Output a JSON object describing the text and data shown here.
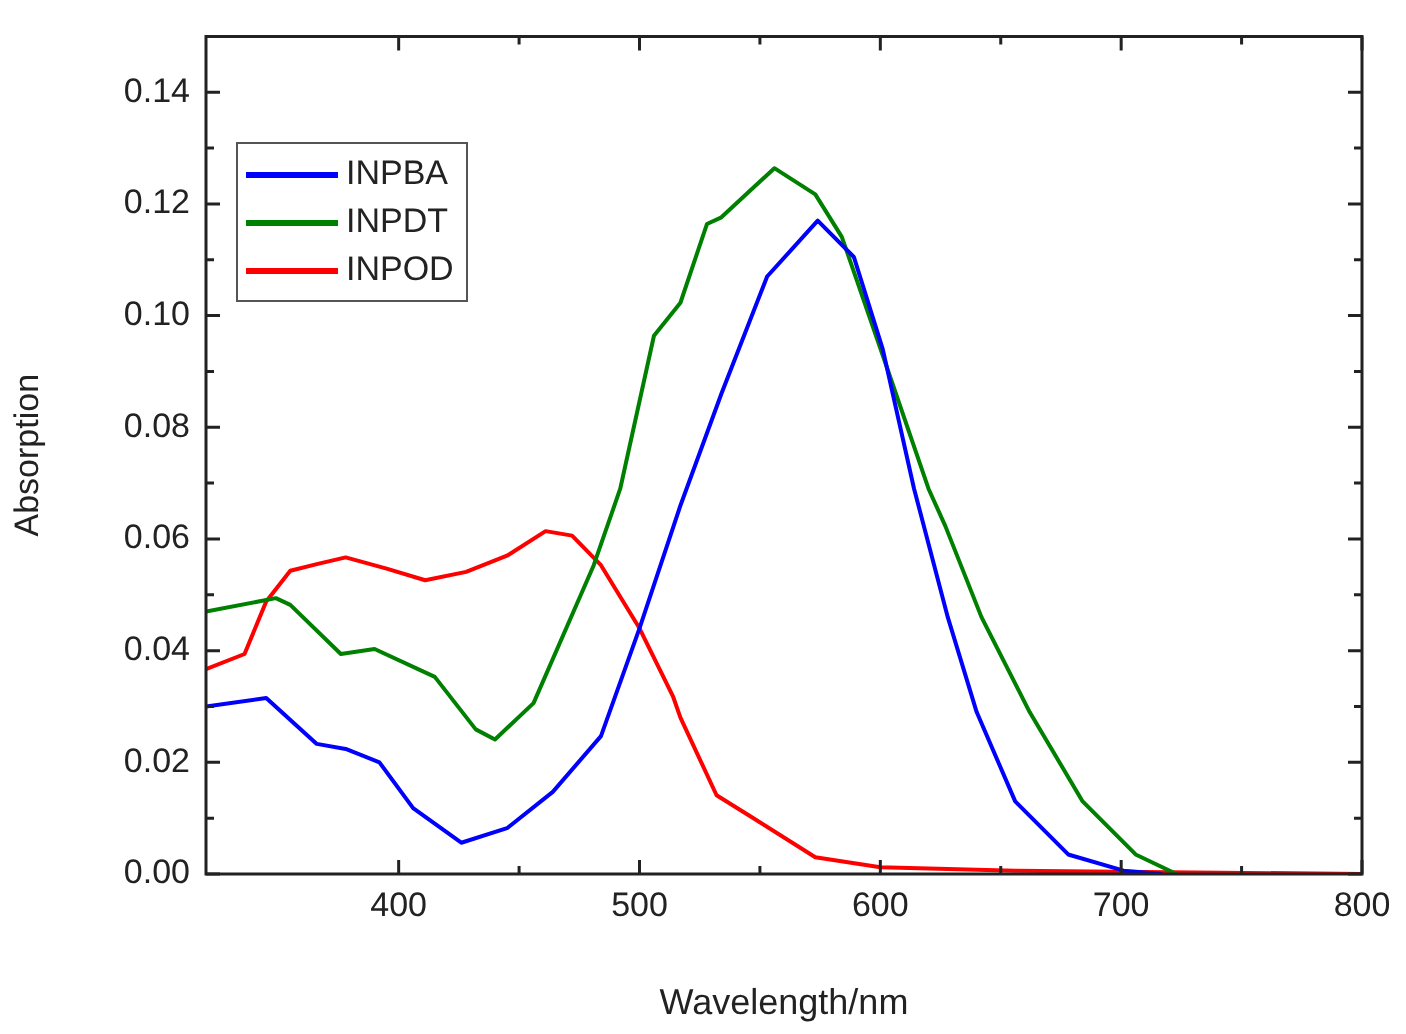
{
  "chart_data": {
    "type": "line",
    "xlabel": "Wavelength/nm",
    "ylabel": "Absorption",
    "xlim": [
      320,
      800
    ],
    "ylim": [
      0,
      0.15
    ],
    "xticks": [
      400,
      {
        "value": 450,
        "label": null
      },
      500,
      {
        "value": 550,
        "label": null
      },
      600,
      {
        "value": 650,
        "label": null
      },
      700,
      {
        "value": 750,
        "label": null
      },
      800
    ],
    "yticks": [
      {
        "value": 0,
        "label": "0.00"
      },
      {
        "value": 0.01,
        "label": null
      },
      {
        "value": 0.02,
        "label": "0.02"
      },
      {
        "value": 0.03,
        "label": null
      },
      {
        "value": 0.04,
        "label": "0.04"
      },
      {
        "value": 0.05,
        "label": null
      },
      {
        "value": 0.06,
        "label": "0.06"
      },
      {
        "value": 0.07,
        "label": null
      },
      {
        "value": 0.08,
        "label": "0.08"
      },
      {
        "value": 0.09,
        "label": null
      },
      {
        "value": 0.1,
        "label": "0.10"
      },
      {
        "value": 0.11,
        "label": null
      },
      {
        "value": 0.12,
        "label": "0.12"
      },
      {
        "value": 0.13,
        "label": null
      },
      {
        "value": 0.14,
        "label": "0.14"
      }
    ],
    "legend": "top left",
    "grid": false,
    "marker": "none",
    "line_style": "solid",
    "series": [
      {
        "name": "INPBA",
        "color": "#0000ff",
        "x": [
          320,
          345,
          366,
          378,
          392,
          406,
          426,
          445,
          464,
          484,
          500,
          517,
          534,
          553,
          574,
          589,
          601,
          614,
          628,
          640,
          656,
          678,
          701,
          717
        ],
        "values": [
          0.03,
          0.0315,
          0.0233,
          0.0224,
          0.02,
          0.0118,
          0.0056,
          0.0082,
          0.0147,
          0.0247,
          0.044,
          0.066,
          0.086,
          0.107,
          0.117,
          0.1105,
          0.094,
          0.069,
          0.046,
          0.029,
          0.013,
          0.0035,
          0.0006,
          0
        ]
      },
      {
        "name": "INPDT",
        "color": "#008000",
        "x": [
          320,
          349,
          355,
          376,
          390,
          415,
          432,
          440,
          456,
          481,
          492,
          506,
          517,
          528,
          534,
          556,
          573,
          584,
          601,
          620,
          627,
          642,
          662,
          684,
          706,
          723
        ],
        "values": [
          0.047,
          0.0494,
          0.0482,
          0.0394,
          0.0403,
          0.0353,
          0.0259,
          0.0241,
          0.0306,
          0.0553,
          0.069,
          0.0964,
          0.1023,
          0.1164,
          0.1176,
          0.1264,
          0.1217,
          0.1141,
          0.0929,
          0.069,
          0.0623,
          0.046,
          0.029,
          0.013,
          0.0035,
          0
        ]
      },
      {
        "name": "INPOD",
        "color": "#ff0000",
        "x": [
          320,
          336,
          345,
          355,
          366,
          378,
          395,
          411,
          428,
          445,
          461,
          472,
          484,
          500,
          514,
          517,
          532,
          545,
          573,
          600,
          656,
          800
        ],
        "values": [
          0.0367,
          0.0394,
          0.0488,
          0.0543,
          0.0555,
          0.0567,
          0.0547,
          0.0526,
          0.0541,
          0.057,
          0.0614,
          0.0606,
          0.0553,
          0.044,
          0.0317,
          0.028,
          0.0141,
          0.0106,
          0.003,
          0.0012,
          0.0006,
          0
        ]
      }
    ]
  }
}
